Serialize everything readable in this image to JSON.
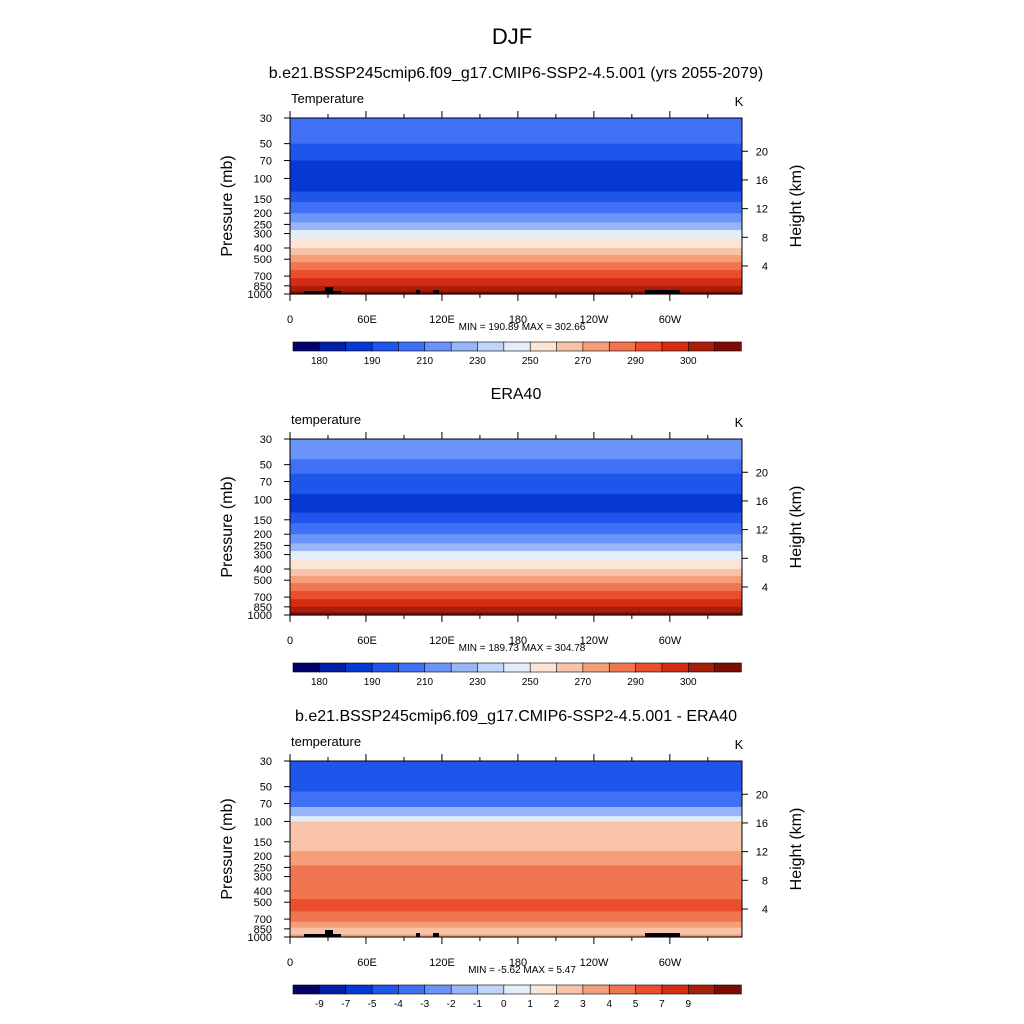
{
  "figure": {
    "title": "DJF"
  },
  "chart_data": [
    {
      "type": "heatmap",
      "title": "b.e21.BSSP245cmip6.f09_g17.CMIP6-SSP2-4.5.001 (yrs 2055-2079)",
      "field_label": "Temperature",
      "units": "K",
      "ylabel": "Pressure (mb)",
      "y2label": "Height (km)",
      "x_ticks": [
        "0",
        "60E",
        "120E",
        "180",
        "120W",
        "60W"
      ],
      "p_ticks": [
        "30",
        "50",
        "70",
        "100",
        "150",
        "200",
        "250",
        "300",
        "400",
        "500",
        "700",
        "850",
        "1000"
      ],
      "z_ticks": [
        "20",
        "16",
        "12",
        "8",
        "4"
      ],
      "stats": "MIN = 190.89  MAX = 302.66",
      "colorbar": {
        "colors": [
          "#02006b",
          "#0020a8",
          "#0639d2",
          "#1f55ea",
          "#3f70f5",
          "#6b94f8",
          "#98b5f7",
          "#c1d5fb",
          "#e4eefb",
          "#fbe5d6",
          "#f8c3a8",
          "#f59e7a",
          "#f07550",
          "#e94e2d",
          "#d42d13",
          "#a81e09",
          "#7d0c02"
        ],
        "labels": [
          "180",
          "190",
          "210",
          "230",
          "250",
          "270",
          "290",
          "300"
        ]
      },
      "profile": [
        {
          "p": 30,
          "c": 4
        },
        {
          "p": 50,
          "c": 3
        },
        {
          "p": 70,
          "c": 2
        },
        {
          "p": 100,
          "c": 2
        },
        {
          "p": 130,
          "c": 3
        },
        {
          "p": 160,
          "c": 4
        },
        {
          "p": 200,
          "c": 5
        },
        {
          "p": 240,
          "c": 6
        },
        {
          "p": 280,
          "c": 8
        },
        {
          "p": 330,
          "c": 9
        },
        {
          "p": 400,
          "c": 10
        },
        {
          "p": 460,
          "c": 11
        },
        {
          "p": 530,
          "c": 12
        },
        {
          "p": 620,
          "c": 13
        },
        {
          "p": 730,
          "c": 14
        },
        {
          "p": 850,
          "c": 15
        },
        {
          "p": 950,
          "c": 16
        }
      ]
    },
    {
      "type": "heatmap",
      "title": "ERA40",
      "field_label": "temperature",
      "units": "K",
      "ylabel": "Pressure (mb)",
      "y2label": "Height (km)",
      "x_ticks": [
        "0",
        "60E",
        "120E",
        "180",
        "120W",
        "60W"
      ],
      "p_ticks": [
        "30",
        "50",
        "70",
        "100",
        "150",
        "200",
        "250",
        "300",
        "400",
        "500",
        "700",
        "850",
        "1000"
      ],
      "z_ticks": [
        "20",
        "16",
        "12",
        "8",
        "4"
      ],
      "stats": "MIN = 189.73  MAX = 304.78",
      "colorbar": {
        "colors": [
          "#02006b",
          "#0020a8",
          "#0639d2",
          "#1f55ea",
          "#3f70f5",
          "#6b94f8",
          "#98b5f7",
          "#c1d5fb",
          "#e4eefb",
          "#fbe5d6",
          "#f8c3a8",
          "#f59e7a",
          "#f07550",
          "#e94e2d",
          "#d42d13",
          "#a81e09",
          "#7d0c02"
        ],
        "labels": [
          "180",
          "190",
          "210",
          "230",
          "250",
          "270",
          "290",
          "300"
        ]
      },
      "profile": [
        {
          "p": 30,
          "c": 5
        },
        {
          "p": 45,
          "c": 4
        },
        {
          "p": 60,
          "c": 3
        },
        {
          "p": 90,
          "c": 2
        },
        {
          "p": 130,
          "c": 3
        },
        {
          "p": 160,
          "c": 4
        },
        {
          "p": 200,
          "c": 5
        },
        {
          "p": 240,
          "c": 6
        },
        {
          "p": 280,
          "c": 8
        },
        {
          "p": 330,
          "c": 9
        },
        {
          "p": 400,
          "c": 10
        },
        {
          "p": 460,
          "c": 11
        },
        {
          "p": 530,
          "c": 12
        },
        {
          "p": 620,
          "c": 13
        },
        {
          "p": 730,
          "c": 14
        },
        {
          "p": 850,
          "c": 15
        },
        {
          "p": 950,
          "c": 16
        }
      ]
    },
    {
      "type": "heatmap",
      "title": "b.e21.BSSP245cmip6.f09_g17.CMIP6-SSP2-4.5.001 - ERA40",
      "field_label": "temperature",
      "units": "K",
      "ylabel": "Pressure (mb)",
      "y2label": "Height (km)",
      "x_ticks": [
        "0",
        "60E",
        "120E",
        "180",
        "120W",
        "60W"
      ],
      "p_ticks": [
        "30",
        "50",
        "70",
        "100",
        "150",
        "200",
        "250",
        "300",
        "400",
        "500",
        "700",
        "850",
        "1000"
      ],
      "z_ticks": [
        "20",
        "16",
        "12",
        "8",
        "4"
      ],
      "stats": "MIN = -5.62  MAX =  5.47",
      "colorbar": {
        "colors": [
          "#02006b",
          "#0020a8",
          "#0639d2",
          "#1f55ea",
          "#3f70f5",
          "#6b94f8",
          "#98b5f7",
          "#c1d5fb",
          "#e4eefb",
          "#fbe5d6",
          "#f8c3a8",
          "#f59e7a",
          "#f07550",
          "#e94e2d",
          "#d42d13",
          "#a81e09",
          "#7d0c02"
        ],
        "labels": [
          "-9",
          "-7",
          "-5",
          "-4",
          "-3",
          "-2",
          "-1",
          "0",
          "1",
          "2",
          "3",
          "4",
          "5",
          "7",
          "9"
        ]
      },
      "profile": [
        {
          "p": 30,
          "c": 3
        },
        {
          "p": 55,
          "c": 4
        },
        {
          "p": 75,
          "c": 6
        },
        {
          "p": 90,
          "c": 8
        },
        {
          "p": 100,
          "c": 10
        },
        {
          "p": 180,
          "c": 11
        },
        {
          "p": 240,
          "c": 12
        },
        {
          "p": 470,
          "c": 13
        },
        {
          "p": 600,
          "c": 12
        },
        {
          "p": 740,
          "c": 11
        },
        {
          "p": 830,
          "c": 10
        },
        {
          "p": 950,
          "c": 11
        }
      ]
    }
  ]
}
